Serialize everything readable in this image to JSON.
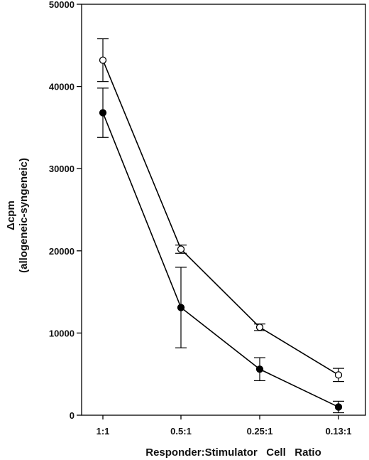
{
  "chart_data": {
    "type": "line",
    "categories": [
      "1:1",
      "0.5:1",
      "0.25:1",
      "0.13:1"
    ],
    "xlabel": "Responder:Stimulator   Cell   Ratio",
    "ylabel_line1": "Δcpm",
    "ylabel_line2": "(allogeneic-syngeneic)",
    "ylim": [
      0,
      50000
    ],
    "yticks": [
      0,
      10000,
      20000,
      30000,
      40000,
      50000
    ],
    "ytick_labels": [
      "0",
      "10000",
      "20000",
      "30000",
      "40000",
      "50000"
    ],
    "grid": false,
    "series": [
      {
        "marker": "open-circle",
        "values": [
          43200,
          20200,
          10700,
          4900
        ],
        "err_high": [
          45800,
          20700,
          11100,
          5700
        ],
        "err_low": [
          40600,
          19700,
          10300,
          4100
        ]
      },
      {
        "marker": "filled-circle",
        "values": [
          36800,
          13100,
          5600,
          1000
        ],
        "err_high": [
          39800,
          18000,
          7000,
          1700
        ],
        "err_low": [
          33800,
          8200,
          4200,
          300
        ]
      }
    ]
  }
}
